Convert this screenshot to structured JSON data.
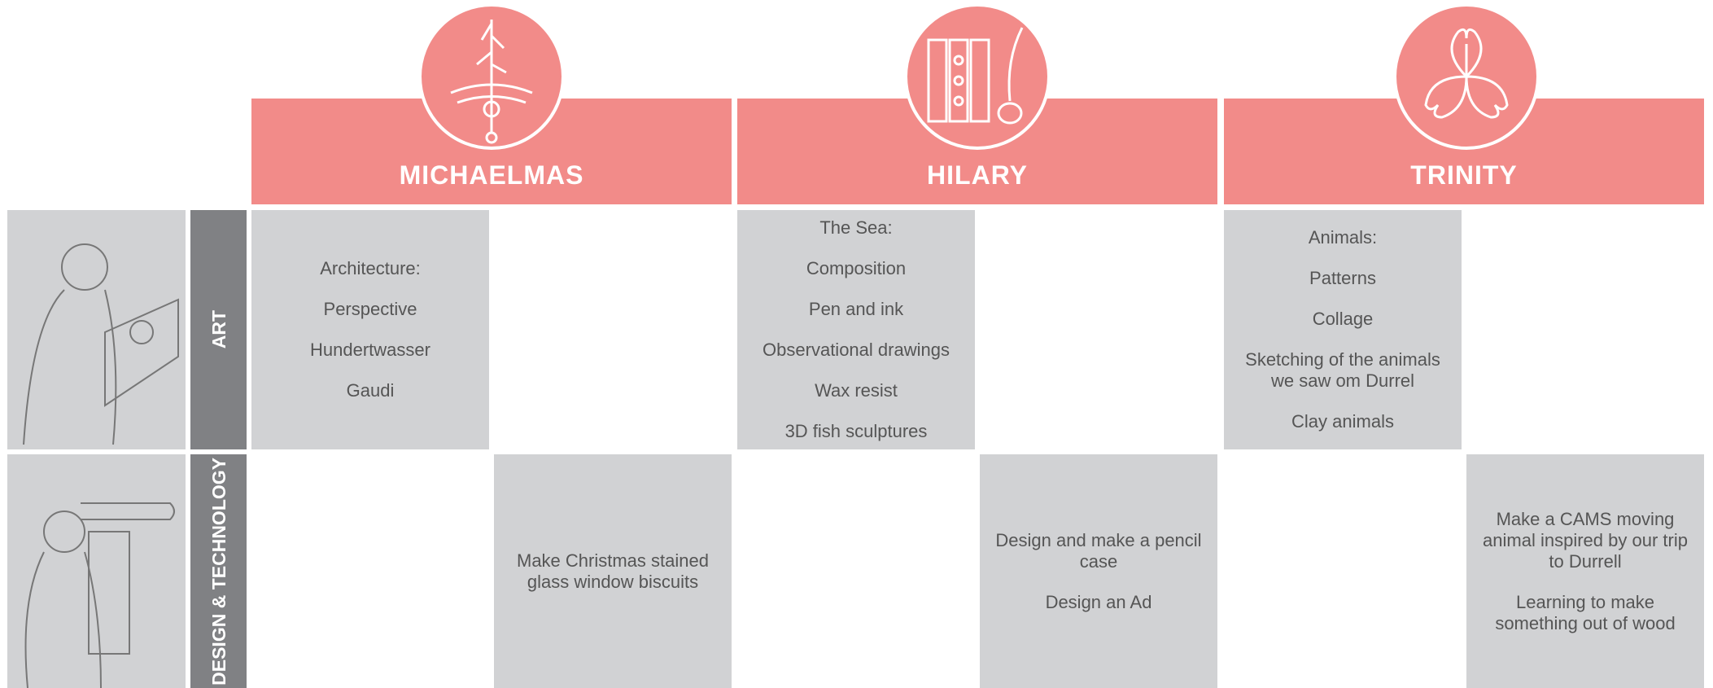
{
  "terms": [
    {
      "name": "MICHAELMAS"
    },
    {
      "name": "HILARY"
    },
    {
      "name": "TRINITY"
    }
  ],
  "subjects": [
    {
      "name": "ART",
      "cells": [
        {
          "items": [
            "Architecture:",
            "Perspective",
            "Hundertwasser",
            "Gaudi"
          ]
        },
        {
          "items": []
        },
        {
          "items": [
            "The Sea:",
            "Composition",
            "Pen and ink",
            "Observational drawings",
            "Wax resist",
            "3D fish sculptures"
          ]
        },
        {
          "items": []
        },
        {
          "items": [
            "Animals:",
            "Patterns",
            "Collage",
            "Sketching of the animals we saw om Durrel",
            "Clay animals"
          ]
        },
        {
          "items": []
        }
      ]
    },
    {
      "name": "DESIGN & TECHNOLOGY",
      "cells": [
        {
          "items": []
        },
        {
          "items": [
            "Make Christmas stained glass window biscuits"
          ]
        },
        {
          "items": []
        },
        {
          "items": [
            "Design and make a pencil case",
            "Design an Ad"
          ]
        },
        {
          "items": []
        },
        {
          "items": [
            "Make a CAMS moving animal inspired by our trip to Durrell",
            "Learning to make something out of wood"
          ]
        }
      ]
    }
  ]
}
